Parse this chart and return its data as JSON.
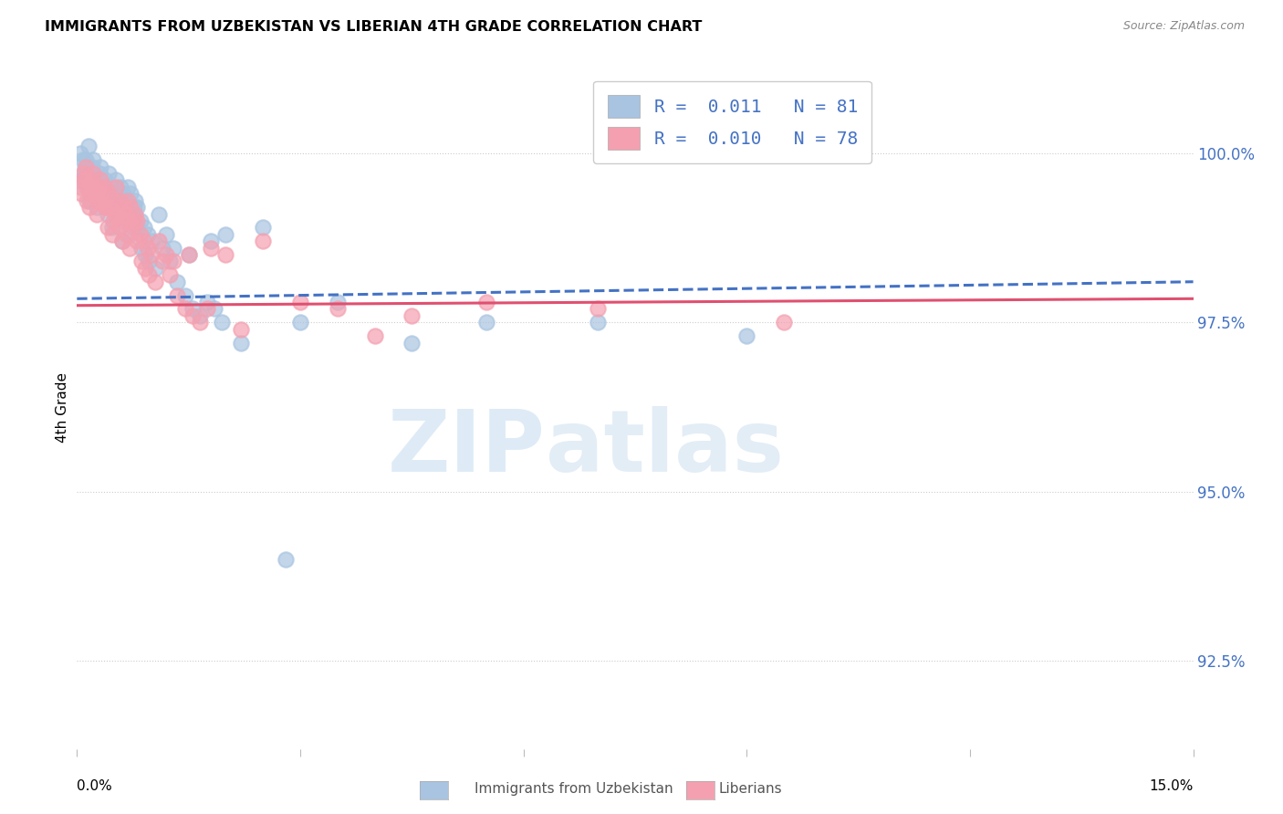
{
  "title": "IMMIGRANTS FROM UZBEKISTAN VS LIBERIAN 4TH GRADE CORRELATION CHART",
  "source": "Source: ZipAtlas.com",
  "ylabel": "4th Grade",
  "ytick_values": [
    92.5,
    95.0,
    97.5,
    100.0
  ],
  "xlim": [
    0.0,
    15.0
  ],
  "ylim": [
    91.2,
    101.3
  ],
  "color_uzbek": "#a8c4e0",
  "color_liberian": "#f4a0b0",
  "trend_uzbek_color": "#4472c4",
  "trend_liberian_color": "#e05070",
  "watermark_zip": "ZIP",
  "watermark_atlas": "atlas",
  "uzbek_x": [
    0.05,
    0.08,
    0.1,
    0.12,
    0.15,
    0.18,
    0.2,
    0.22,
    0.25,
    0.28,
    0.3,
    0.32,
    0.35,
    0.38,
    0.4,
    0.42,
    0.45,
    0.48,
    0.5,
    0.52,
    0.55,
    0.58,
    0.6,
    0.62,
    0.65,
    0.68,
    0.7,
    0.72,
    0.75,
    0.78,
    0.8,
    0.85,
    0.9,
    0.95,
    1.0,
    1.1,
    1.2,
    1.3,
    1.5,
    1.8,
    2.0,
    2.5,
    3.0,
    3.5,
    4.5,
    5.5,
    7.0,
    9.0,
    0.06,
    0.09,
    0.13,
    0.17,
    0.21,
    0.27,
    0.31,
    0.37,
    0.41,
    0.47,
    0.51,
    0.57,
    0.61,
    0.67,
    0.71,
    0.77,
    0.81,
    0.87,
    0.91,
    0.97,
    1.05,
    1.15,
    1.25,
    1.35,
    1.45,
    1.55,
    1.65,
    1.75,
    1.85,
    1.95,
    2.2,
    2.8
  ],
  "uzbek_y": [
    100.0,
    99.9,
    99.8,
    99.9,
    100.1,
    99.7,
    99.8,
    99.9,
    99.6,
    99.5,
    99.7,
    99.8,
    99.5,
    99.6,
    99.4,
    99.7,
    99.5,
    99.3,
    99.4,
    99.6,
    99.3,
    99.5,
    99.2,
    99.4,
    99.3,
    99.5,
    99.2,
    99.4,
    99.1,
    99.3,
    99.2,
    99.0,
    98.9,
    98.8,
    98.7,
    99.1,
    98.8,
    98.6,
    98.5,
    98.7,
    98.8,
    98.9,
    97.5,
    97.8,
    97.2,
    97.5,
    97.5,
    97.3,
    99.6,
    99.7,
    99.5,
    99.3,
    99.6,
    99.2,
    99.5,
    99.4,
    99.1,
    98.9,
    99.3,
    99.1,
    98.7,
    99.0,
    98.8,
    99.2,
    98.9,
    98.6,
    98.5,
    98.4,
    98.3,
    98.6,
    98.4,
    98.1,
    97.9,
    97.7,
    97.6,
    97.8,
    97.7,
    97.5,
    97.2,
    94.0
  ],
  "liberian_x": [
    0.05,
    0.08,
    0.1,
    0.12,
    0.15,
    0.18,
    0.2,
    0.22,
    0.25,
    0.28,
    0.3,
    0.32,
    0.35,
    0.38,
    0.4,
    0.42,
    0.45,
    0.48,
    0.5,
    0.52,
    0.55,
    0.58,
    0.6,
    0.62,
    0.65,
    0.68,
    0.7,
    0.72,
    0.75,
    0.78,
    0.8,
    0.85,
    0.9,
    0.95,
    1.0,
    1.1,
    1.2,
    1.3,
    1.5,
    1.8,
    2.0,
    2.5,
    3.0,
    3.5,
    4.5,
    5.5,
    7.0,
    9.5,
    0.06,
    0.09,
    0.13,
    0.17,
    0.21,
    0.27,
    0.31,
    0.37,
    0.41,
    0.47,
    0.51,
    0.57,
    0.61,
    0.67,
    0.71,
    0.77,
    0.81,
    0.87,
    0.91,
    0.97,
    1.05,
    1.15,
    1.25,
    1.35,
    1.45,
    1.55,
    1.65,
    1.75,
    2.2,
    4.0
  ],
  "liberian_y": [
    99.5,
    99.7,
    99.6,
    99.8,
    99.5,
    99.4,
    99.6,
    99.7,
    99.4,
    99.3,
    99.5,
    99.6,
    99.3,
    99.5,
    99.2,
    99.4,
    99.2,
    99.0,
    99.3,
    99.5,
    99.1,
    99.3,
    99.0,
    99.2,
    99.1,
    99.3,
    99.0,
    99.2,
    98.9,
    99.1,
    99.0,
    98.8,
    98.7,
    98.6,
    98.5,
    98.7,
    98.5,
    98.4,
    98.5,
    98.6,
    98.5,
    98.7,
    97.8,
    97.7,
    97.6,
    97.8,
    97.7,
    97.5,
    99.4,
    99.6,
    99.3,
    99.2,
    99.5,
    99.1,
    99.4,
    99.2,
    98.9,
    98.8,
    99.1,
    98.9,
    98.7,
    98.8,
    98.6,
    99.0,
    98.7,
    98.4,
    98.3,
    98.2,
    98.1,
    98.4,
    98.2,
    97.9,
    97.7,
    97.6,
    97.5,
    97.7,
    97.4,
    97.3
  ],
  "trend_uzbek_x0": 0.0,
  "trend_uzbek_y0": 97.85,
  "trend_uzbek_x1": 15.0,
  "trend_uzbek_y1": 98.1,
  "trend_liberian_x0": 0.0,
  "trend_liberian_y0": 97.75,
  "trend_liberian_x1": 15.0,
  "trend_liberian_y1": 97.85
}
